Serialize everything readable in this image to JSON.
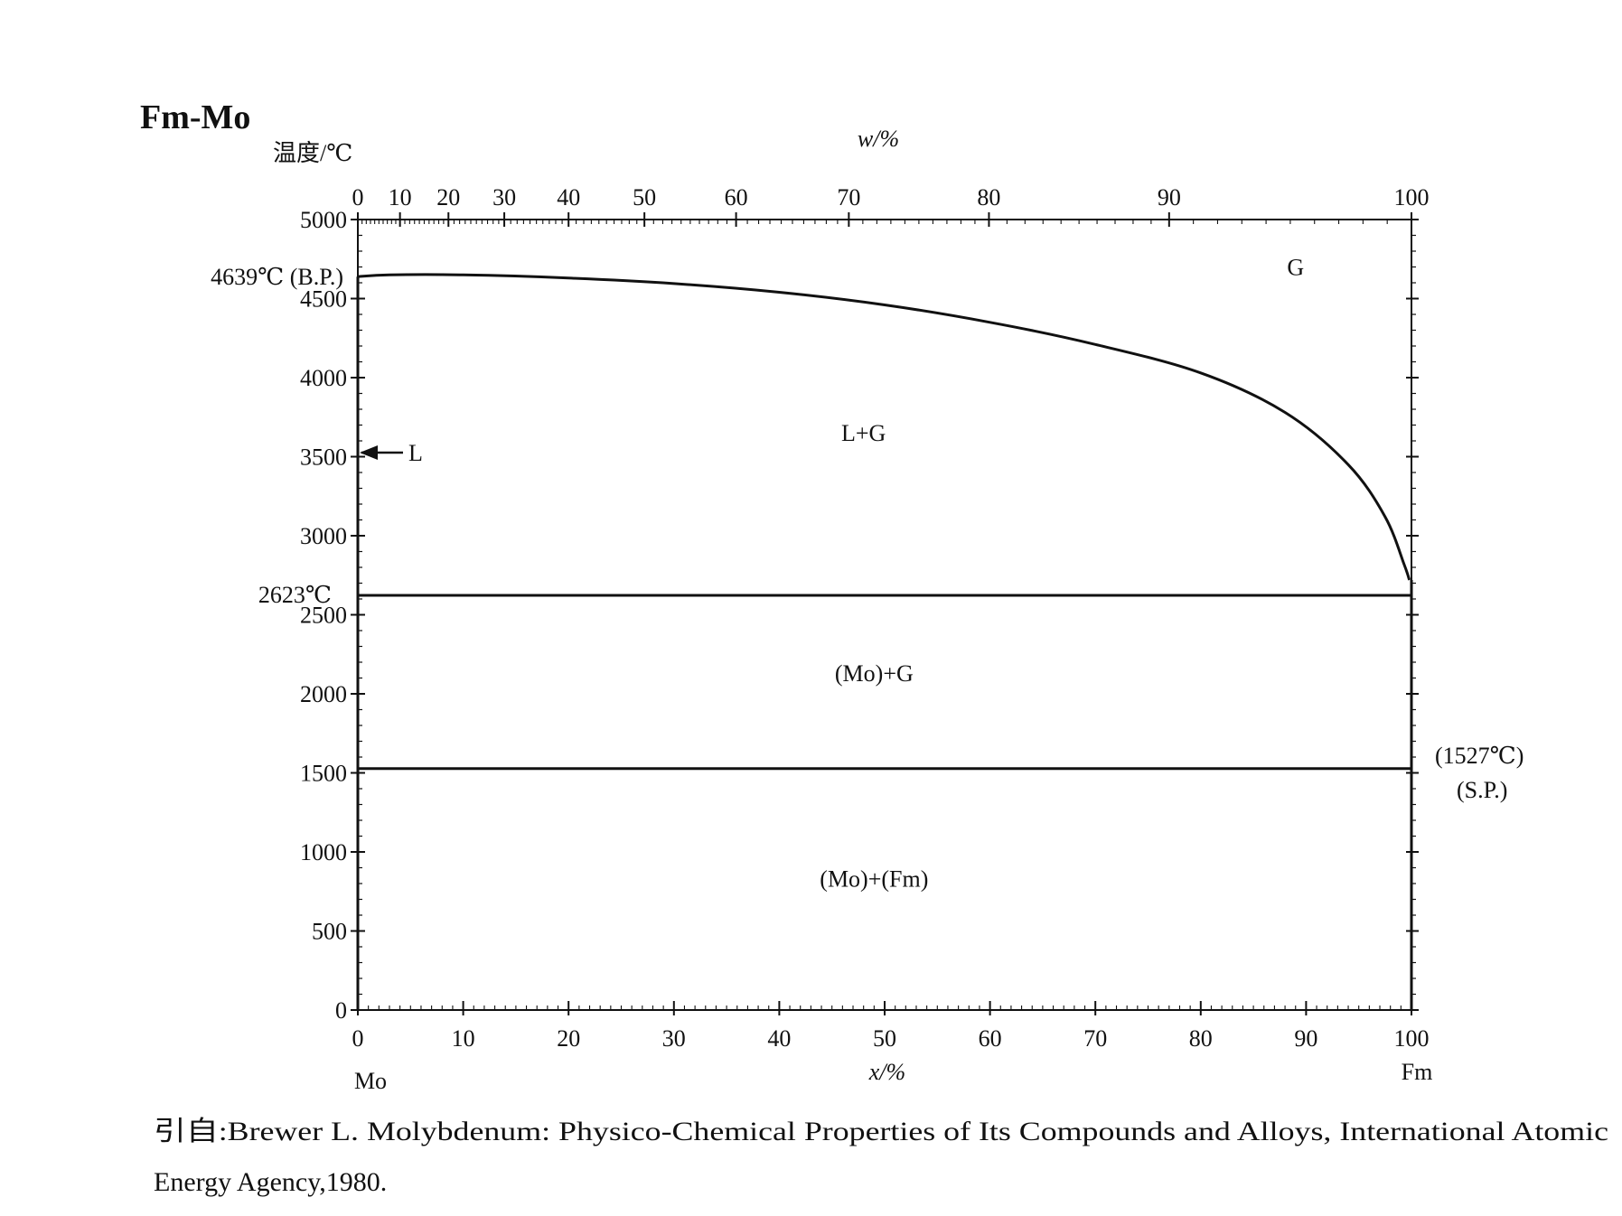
{
  "chart_data": {
    "type": "phase_diagram",
    "title": "Fm-Mo",
    "ylabel": "温度/℃",
    "xlabel_bottom": "x/%",
    "xlabel_top": "w/%",
    "ylim": [
      0,
      5000
    ],
    "xlim": [
      0,
      100
    ],
    "y_ticks": [
      0,
      500,
      1000,
      1500,
      2000,
      2500,
      3000,
      3500,
      4000,
      4500,
      5000
    ],
    "x_ticks": [
      0,
      10,
      20,
      30,
      40,
      50,
      60,
      70,
      80,
      90,
      100
    ],
    "top_ticks": [
      {
        "w": 0,
        "x": 0.0
      },
      {
        "w": 10,
        "x": 4.0
      },
      {
        "w": 20,
        "x": 8.6
      },
      {
        "w": 30,
        "x": 13.9
      },
      {
        "w": 40,
        "x": 20.0
      },
      {
        "w": 50,
        "x": 27.2
      },
      {
        "w": 60,
        "x": 35.9
      },
      {
        "w": 70,
        "x": 46.6
      },
      {
        "w": 80,
        "x": 59.9
      },
      {
        "w": 90,
        "x": 77.0
      },
      {
        "w": 100,
        "x": 100.0
      }
    ],
    "left_element": "Mo",
    "right_element": "Fm",
    "series": [
      {
        "name": "gas boundary",
        "points": [
          [
            0,
            4639
          ],
          [
            3,
            4650
          ],
          [
            10,
            4650
          ],
          [
            20,
            4630
          ],
          [
            30,
            4595
          ],
          [
            40,
            4540
          ],
          [
            50,
            4460
          ],
          [
            60,
            4350
          ],
          [
            70,
            4210
          ],
          [
            80,
            4030
          ],
          [
            88,
            3780
          ],
          [
            94,
            3450
          ],
          [
            97.5,
            3120
          ],
          [
            99.3,
            2820
          ],
          [
            99.8,
            2720
          ]
        ]
      },
      {
        "name": "2623 isotherm",
        "points": [
          [
            0,
            2623
          ],
          [
            100,
            2623
          ]
        ]
      },
      {
        "name": "1527 isotherm",
        "points": [
          [
            0,
            1527
          ],
          [
            100,
            1527
          ]
        ]
      },
      {
        "name": "Mo side",
        "points": [
          [
            0,
            0
          ],
          [
            0,
            4639
          ]
        ]
      },
      {
        "name": "Fm side",
        "points": [
          [
            100,
            0
          ],
          [
            100,
            2720
          ]
        ]
      }
    ],
    "regions": [
      {
        "label": "G",
        "x": 89,
        "y": 4650
      },
      {
        "label": "L+G",
        "x": 48,
        "y": 3600
      },
      {
        "label": "(Mo)+G",
        "x": 49,
        "y": 2080
      },
      {
        "label": "(Mo)+(Fm)",
        "x": 49,
        "y": 780
      }
    ],
    "annotations": {
      "bp_temp": "4639℃ (B.P.)",
      "eutectic_temp": "2623℃",
      "arrow_label": "L",
      "sp_temp": "(1527℃)",
      "sp_label": "(S.P.)"
    }
  },
  "source": {
    "line1": "引自:Brewer L. Molybdenum: Physico-Chemical Properties of Its Compounds and Alloys, International Atomic",
    "line2": "Energy Agency,1980."
  }
}
